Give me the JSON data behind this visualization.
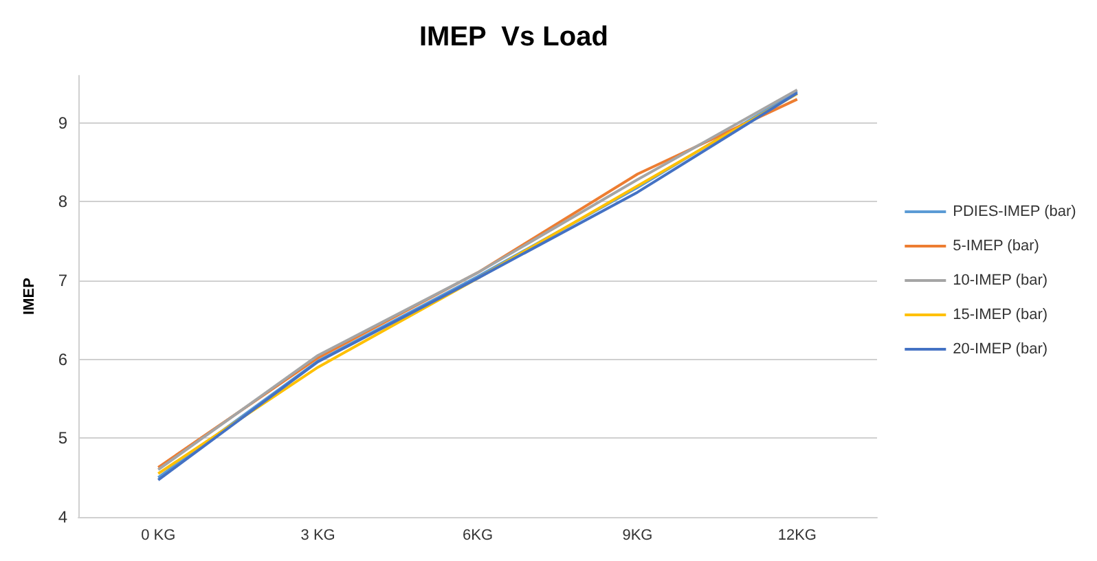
{
  "chart_data": {
    "type": "line",
    "title": "IMEP  Vs Load",
    "ylabel": "IMEP",
    "categories": [
      "0 KG",
      "3 KG",
      "6KG",
      "9KG",
      "12KG"
    ],
    "series": [
      {
        "name": "PDIES-IMEP (bar)",
        "color": "#5b9bd5",
        "values": [
          4.5,
          5.98,
          7.05,
          8.18,
          9.4
        ]
      },
      {
        "name": "5-IMEP (bar)",
        "color": "#ed7d31",
        "values": [
          4.63,
          6.02,
          7.1,
          8.35,
          9.3
        ]
      },
      {
        "name": "10-IMEP (bar)",
        "color": "#a5a5a5",
        "values": [
          4.6,
          6.05,
          7.1,
          8.28,
          9.42
        ]
      },
      {
        "name": "15-IMEP (bar)",
        "color": "#ffc000",
        "values": [
          4.55,
          5.9,
          7.03,
          8.2,
          9.37
        ]
      },
      {
        "name": "20-IMEP (bar)",
        "color": "#4472c4",
        "values": [
          4.47,
          5.97,
          7.03,
          8.12,
          9.38
        ]
      }
    ],
    "ylim": [
      4,
      9.6
    ],
    "yticks": [
      4,
      5,
      6,
      7,
      8,
      9
    ],
    "grid": "y",
    "legend": "right",
    "marker": "none",
    "line_style": "solid"
  }
}
